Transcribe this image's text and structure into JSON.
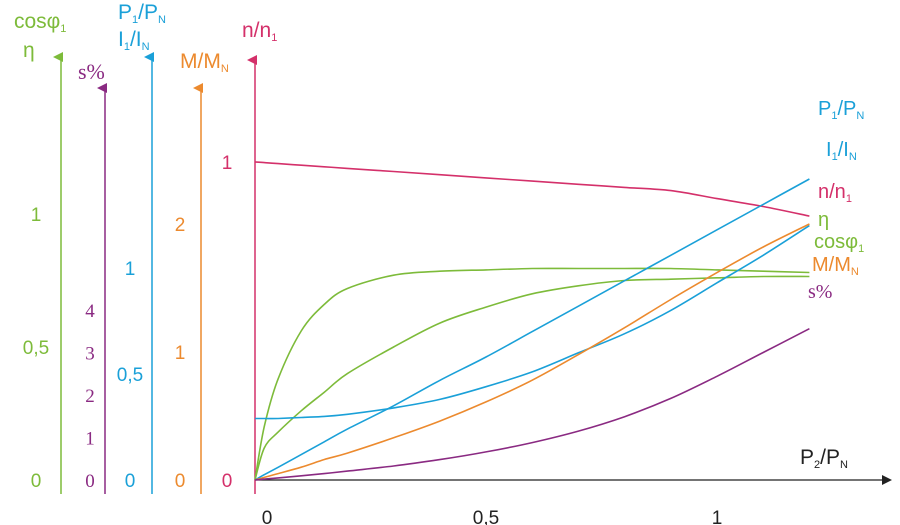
{
  "colors": {
    "green": "#7dbb3a",
    "purple": "#8a2a82",
    "blue": "#1aa0d8",
    "orange": "#ec8a2e",
    "crimson": "#d4306a",
    "black": "#222222"
  },
  "axes": {
    "eta_cos": {
      "label_main": "cosφ",
      "label_sub": "1",
      "label2": "η",
      "ticks": [
        {
          "v": 0,
          "t": "0"
        },
        {
          "v": 0.5,
          "t": "0,5"
        },
        {
          "v": 1,
          "t": "1"
        }
      ]
    },
    "s_percent": {
      "label": "s%",
      "ticks": [
        {
          "v": 0,
          "t": "0"
        },
        {
          "v": 1,
          "t": "1"
        },
        {
          "v": 2,
          "t": "2"
        },
        {
          "v": 3,
          "t": "3"
        },
        {
          "v": 4,
          "t": "4"
        }
      ]
    },
    "p_i": {
      "label1_a": "P",
      "label1_b": "1",
      "label1_c": "/P",
      "label1_d": "N",
      "label2_a": "I",
      "label2_b": "1",
      "label2_c": "/I",
      "label2_d": "N",
      "ticks": [
        {
          "v": 0,
          "t": "0"
        },
        {
          "v": 0.5,
          "t": "0,5"
        },
        {
          "v": 1,
          "t": "1"
        }
      ]
    },
    "m": {
      "label_a": "M/M",
      "label_b": "N",
      "ticks": [
        {
          "v": 0,
          "t": "0"
        },
        {
          "v": 1,
          "t": "1"
        },
        {
          "v": 2,
          "t": "2"
        }
      ]
    },
    "n": {
      "label_a": "n/n",
      "label_b": "1",
      "ticks": [
        {
          "v": 0,
          "t": "0"
        },
        {
          "v": 1,
          "t": "1"
        }
      ]
    },
    "x": {
      "label_a": "P",
      "label_b": "2",
      "label_c": "/P",
      "label_d": "N",
      "ticks": [
        {
          "v": 0,
          "t": "0"
        },
        {
          "v": 0.5,
          "t": "0,5"
        },
        {
          "v": 1,
          "t": "1"
        }
      ]
    }
  },
  "chart_data": {
    "type": "line",
    "x": [
      0,
      0.02,
      0.05,
      0.1,
      0.15,
      0.2,
      0.3,
      0.4,
      0.5,
      0.6,
      0.7,
      0.8,
      0.9,
      1.0,
      1.1,
      1.2
    ],
    "series": [
      {
        "name": "n/n1",
        "axis": "n",
        "color_key": "crimson",
        "values": [
          1.0,
          0.998,
          0.995,
          0.99,
          0.985,
          0.98,
          0.97,
          0.96,
          0.95,
          0.94,
          0.93,
          0.92,
          0.91,
          0.885,
          0.86,
          0.83
        ]
      },
      {
        "name": "η",
        "axis": "eta_cos",
        "color_key": "green",
        "values": [
          0,
          0.2,
          0.38,
          0.56,
          0.66,
          0.72,
          0.77,
          0.785,
          0.79,
          0.795,
          0.795,
          0.795,
          0.795,
          0.79,
          0.785,
          0.78
        ]
      },
      {
        "name": "cosφ1",
        "axis": "eta_cos",
        "color_key": "green",
        "values": [
          0,
          0.12,
          0.18,
          0.26,
          0.33,
          0.4,
          0.5,
          0.59,
          0.65,
          0.7,
          0.73,
          0.75,
          0.755,
          0.76,
          0.765,
          0.765
        ]
      },
      {
        "name": "P1/PN",
        "axis": "p_i",
        "color_key": "blue",
        "values": [
          0,
          0.025,
          0.06,
          0.12,
          0.18,
          0.24,
          0.35,
          0.47,
          0.58,
          0.7,
          0.82,
          0.94,
          1.06,
          1.18,
          1.3,
          1.42
        ]
      },
      {
        "name": "I1/IN",
        "axis": "p_i",
        "color_key": "blue",
        "values": [
          0.29,
          0.29,
          0.29,
          0.295,
          0.3,
          0.31,
          0.34,
          0.38,
          0.44,
          0.51,
          0.6,
          0.69,
          0.8,
          0.93,
          1.06,
          1.2
        ]
      },
      {
        "name": "M/MN",
        "axis": "m",
        "color_key": "orange",
        "values": [
          0,
          0.02,
          0.05,
          0.1,
          0.16,
          0.21,
          0.33,
          0.46,
          0.61,
          0.78,
          0.98,
          1.19,
          1.41,
          1.62,
          1.82,
          2.0
        ]
      },
      {
        "name": "s%",
        "axis": "s_percent",
        "color_key": "purple",
        "values": [
          0,
          0.02,
          0.05,
          0.1,
          0.15,
          0.21,
          0.33,
          0.48,
          0.66,
          0.88,
          1.15,
          1.49,
          1.92,
          2.44,
          3.0,
          3.56
        ]
      }
    ],
    "curve_labels": [
      {
        "a": "P",
        "b": "1",
        "c": "/P",
        "d": "N",
        "color_key": "blue"
      },
      {
        "a": "I",
        "b": "1",
        "c": "/I",
        "d": "N",
        "color_key": "blue"
      },
      {
        "a": "n/n",
        "b": "1",
        "c": "",
        "d": "",
        "color_key": "crimson"
      },
      {
        "a": "η",
        "b": "",
        "c": "",
        "d": "",
        "color_key": "green"
      },
      {
        "a": "cosφ",
        "b": "1",
        "c": "",
        "d": "",
        "color_key": "green"
      },
      {
        "a": "M/M",
        "b": "N",
        "c": "",
        "d": "",
        "color_key": "orange"
      },
      {
        "a": "s%",
        "b": "",
        "c": "",
        "d": "",
        "color_key": "purple"
      }
    ],
    "xlim": [
      0,
      1.4
    ],
    "grid": false
  }
}
